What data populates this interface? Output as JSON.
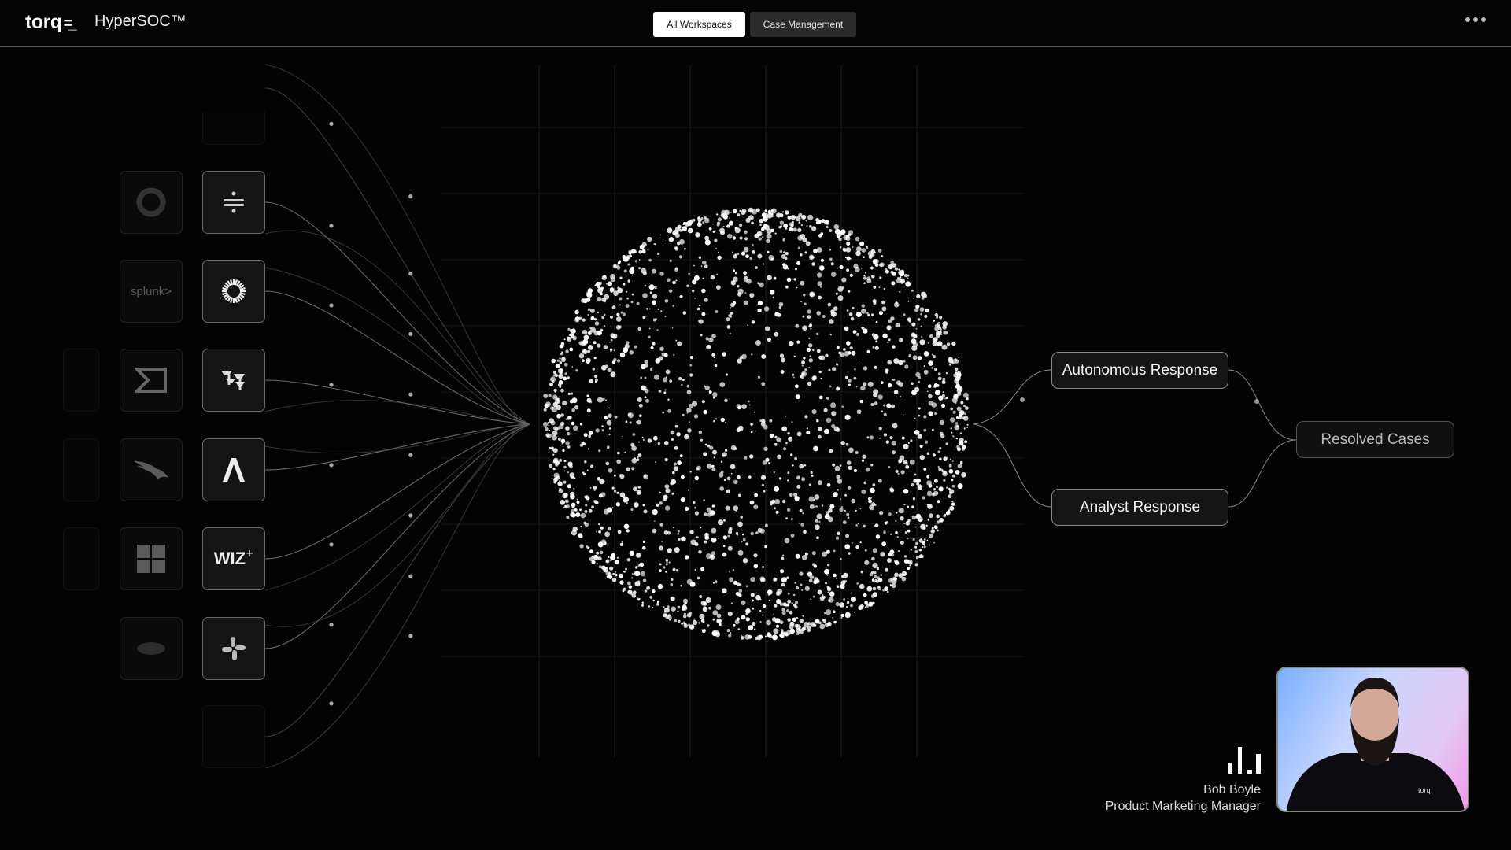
{
  "topbar": {
    "logo": "torq",
    "product": "HyperSOC™",
    "tabs": [
      {
        "label": "All Workspaces",
        "active": true
      },
      {
        "label": "Case Management",
        "active": false
      }
    ],
    "more_icon": "ellipsis-icon"
  },
  "integrations": {
    "primary": [
      "sentinelone-icon",
      "sumo-icon",
      "freshservice-icon",
      "abnormal-icon",
      "wiz",
      "slack-icon"
    ],
    "secondary": [
      "okta-icon",
      "splunk>",
      "sigma-icon",
      "crowdstrike-icon",
      "windows-icon",
      "zscaler-icon"
    ]
  },
  "flow": {
    "autonomous": "Autonomous Response",
    "analyst": "Analyst Response",
    "resolved": "Resolved Cases"
  },
  "speaker": {
    "name": "Bob Boyle",
    "title": "Product Marketing Manager",
    "shirt_logo": "torq"
  },
  "colors": {
    "background": "#030303",
    "accent": "#ffffff",
    "line": "#8a8a8a"
  }
}
